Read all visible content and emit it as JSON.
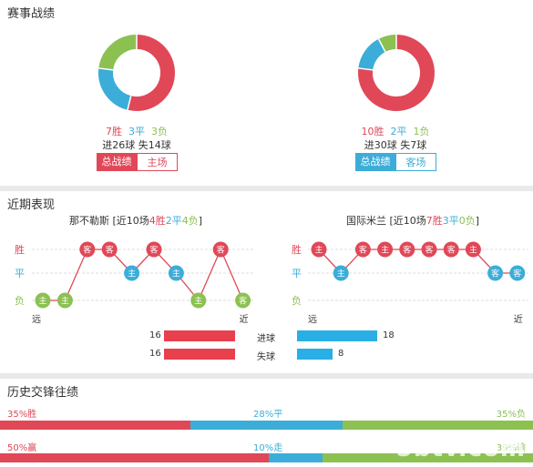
{
  "match_record": {
    "title": "赛事战绩",
    "left": {
      "wins": "7胜",
      "draws": "3平",
      "losses": "3负",
      "goals": "进26球 失14球",
      "tab_active": "总战绩",
      "tab_inactive": "主场",
      "donut": [
        {
          "label": "胜",
          "value": 7,
          "color": "#e04858"
        },
        {
          "label": "平",
          "value": 3,
          "color": "#3cadd8"
        },
        {
          "label": "负",
          "value": 3,
          "color": "#8cc152"
        }
      ]
    },
    "right": {
      "wins": "10胜",
      "draws": "2平",
      "losses": "1负",
      "goals": "进30球 失7球",
      "tab_active": "总战绩",
      "tab_inactive": "客场",
      "donut": [
        {
          "label": "胜",
          "value": 10,
          "color": "#e04858"
        },
        {
          "label": "平",
          "value": 2,
          "color": "#3cadd8"
        },
        {
          "label": "负",
          "value": 1,
          "color": "#8cc152"
        }
      ]
    }
  },
  "recent_form": {
    "title": "近期表现",
    "row_labels": [
      "胜",
      "平",
      "负"
    ],
    "far_label": "远",
    "near_label": "近",
    "left_team": {
      "name": "那不勒斯",
      "summary_prefix": "[近10场",
      "wins": "4胜",
      "draws": "2平",
      "losses": "4负",
      "summary_suffix": "]",
      "results": [
        {
          "r": "L",
          "v": "主"
        },
        {
          "r": "L",
          "v": "主"
        },
        {
          "r": "W",
          "v": "客"
        },
        {
          "r": "W",
          "v": "客"
        },
        {
          "r": "D",
          "v": "主"
        },
        {
          "r": "W",
          "v": "客"
        },
        {
          "r": "D",
          "v": "主"
        },
        {
          "r": "L",
          "v": "主"
        },
        {
          "r": "W",
          "v": "客"
        },
        {
          "r": "L",
          "v": "客"
        }
      ]
    },
    "right_team": {
      "name": "国际米兰",
      "summary_prefix": "[近10场",
      "wins": "7胜",
      "draws": "3平",
      "losses": "0负",
      "summary_suffix": "]",
      "results": [
        {
          "r": "W",
          "v": "主"
        },
        {
          "r": "D",
          "v": "主"
        },
        {
          "r": "W",
          "v": "客"
        },
        {
          "r": "W",
          "v": "主"
        },
        {
          "r": "W",
          "v": "客"
        },
        {
          "r": "W",
          "v": "客"
        },
        {
          "r": "W",
          "v": "客"
        },
        {
          "r": "W",
          "v": "主"
        },
        {
          "r": "D",
          "v": "客"
        },
        {
          "r": "D",
          "v": "客"
        }
      ]
    },
    "goals": {
      "scored_label": "进球",
      "conceded_label": "失球",
      "left_scored": 16,
      "left_conceded": 16,
      "right_scored": 18,
      "right_conceded": 8,
      "max": 18
    }
  },
  "head_to_head": {
    "title": "历史交锋往绩",
    "row1": {
      "win": "35%胜",
      "draw": "28%平",
      "loss": "35%负",
      "values": [
        35,
        28,
        35
      ]
    },
    "row2": {
      "win": "50%赢",
      "draw": "10%走",
      "loss": "39%输",
      "values": [
        50,
        10,
        39
      ]
    }
  },
  "watermark": "5btv.com",
  "colors": {
    "win": "#e04858",
    "draw": "#3cadd8",
    "loss": "#8cc152"
  }
}
